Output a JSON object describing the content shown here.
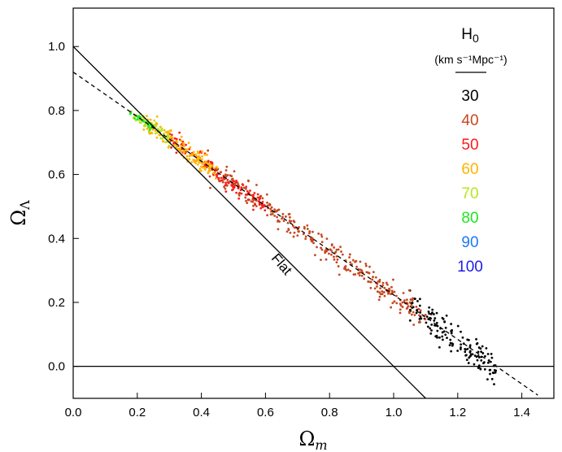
{
  "chart_data": {
    "type": "scatter",
    "xlabel_symbol": "Ω",
    "xlabel_sub": "m",
    "ylabel_symbol": "Ω",
    "ylabel_sub": "Λ",
    "xlim": [
      0.0,
      1.5
    ],
    "ylim": [
      -0.1,
      1.12
    ],
    "x_ticks": [
      0.0,
      0.2,
      0.4,
      0.6,
      0.8,
      1.0,
      1.2,
      1.4
    ],
    "x_tick_labels": [
      "0.0",
      "0.2",
      "0.4",
      "0.6",
      "0.8",
      "1.0",
      "1.2",
      "1.4"
    ],
    "y_ticks": [
      0.0,
      0.2,
      0.4,
      0.6,
      0.8,
      1.0
    ],
    "y_tick_labels": [
      "0.0",
      "0.2",
      "0.4",
      "0.6",
      "0.8",
      "1.0"
    ],
    "grid": false,
    "lines": [
      {
        "name": "flat",
        "style": "solid",
        "x": [
          0.0,
          1.1
        ],
        "y": [
          1.0,
          -0.1
        ]
      },
      {
        "name": "fit",
        "style": "dashed",
        "x": [
          0.0,
          1.45
        ],
        "y": [
          0.92,
          -0.09
        ]
      },
      {
        "name": "zero",
        "style": "solid",
        "x": [
          0.0,
          1.5
        ],
        "y": [
          0.0,
          0.0
        ]
      }
    ],
    "annotation": {
      "text": "Flat",
      "x": 0.64,
      "y": 0.31,
      "rotation_deg": 49
    },
    "legend": {
      "title_main": "H",
      "title_sub": "0",
      "units": "(km s⁻¹Mpc⁻¹)",
      "placement": "top-right",
      "entries": [
        {
          "label": "30",
          "color": "#000000"
        },
        {
          "label": "40",
          "color": "#c8461e"
        },
        {
          "label": "50",
          "color": "#ff1a1a"
        },
        {
          "label": "60",
          "color": "#ffb400"
        },
        {
          "label": "70",
          "color": "#b4e61e"
        },
        {
          "label": "80",
          "color": "#1ee61e"
        },
        {
          "label": "90",
          "color": "#1e78ff"
        },
        {
          "label": "100",
          "color": "#1e1ee6"
        }
      ]
    },
    "series": [
      {
        "name": "30",
        "color": "#000000",
        "x_range": [
          1.05,
          1.32
        ],
        "count": 150,
        "scatter": 0.025
      },
      {
        "name": "40",
        "color": "#c8461e",
        "x_range": [
          0.42,
          1.1
        ],
        "count": 320,
        "scatter": 0.018
      },
      {
        "name": "50",
        "color": "#ff1a1a",
        "x_range": [
          0.3,
          0.6
        ],
        "count": 130,
        "scatter": 0.014
      },
      {
        "name": "60",
        "color": "#ffb400",
        "x_range": [
          0.22,
          0.45
        ],
        "count": 180,
        "scatter": 0.014
      },
      {
        "name": "70",
        "color": "#b4e61e",
        "x_range": [
          0.18,
          0.3
        ],
        "count": 60,
        "scatter": 0.01
      },
      {
        "name": "80",
        "color": "#1ee61e",
        "x_range": [
          0.17,
          0.25
        ],
        "count": 25,
        "scatter": 0.008
      }
    ],
    "trend": {
      "intercept": 0.92,
      "slope": -0.7
    }
  }
}
